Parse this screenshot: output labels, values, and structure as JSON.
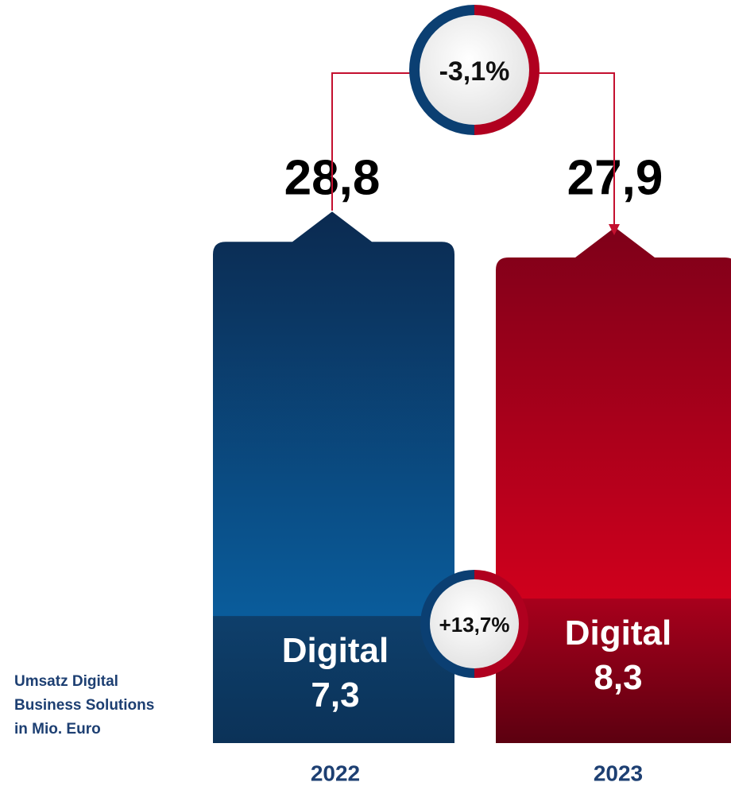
{
  "chart_data": {
    "type": "bar",
    "categories": [
      "2022",
      "2023"
    ],
    "values": [
      28.8,
      27.9
    ],
    "value_labels": [
      "28,8",
      "27,9"
    ],
    "colors": [
      "#0a5fa3",
      "#d9001d"
    ],
    "digital": {
      "name": "Digital",
      "values": [
        7.3,
        8.3
      ],
      "value_labels": [
        "7,3",
        "8,3"
      ]
    },
    "annotations": [
      "-3,1%",
      "+13,7%"
    ],
    "note": [
      "Umsatz Digital",
      "Business Solutions",
      "in Mio. Euro"
    ]
  }
}
